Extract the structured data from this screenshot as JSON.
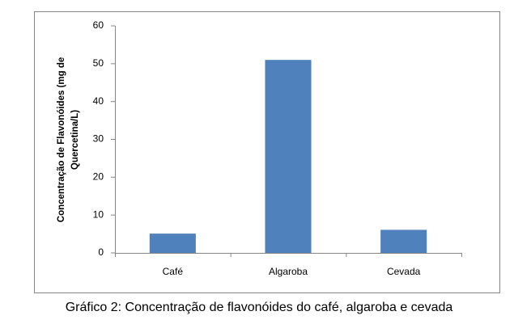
{
  "chart_data": {
    "type": "bar",
    "ylabel": [
      "Concentração de Flavonóides (mg de",
      "Quercetina/L)"
    ],
    "categories": [
      "Café",
      "Algaroba",
      "Cevada"
    ],
    "values": [
      5.1,
      51,
      6.1
    ],
    "color": "#4f81bd",
    "ylim": [
      0,
      60
    ],
    "yticks": [
      0,
      10,
      20,
      30,
      40,
      50,
      60
    ],
    "grid": false,
    "caption": "Gráfico 2: Concentração de flavonóides do café, algaroba e cevada"
  }
}
